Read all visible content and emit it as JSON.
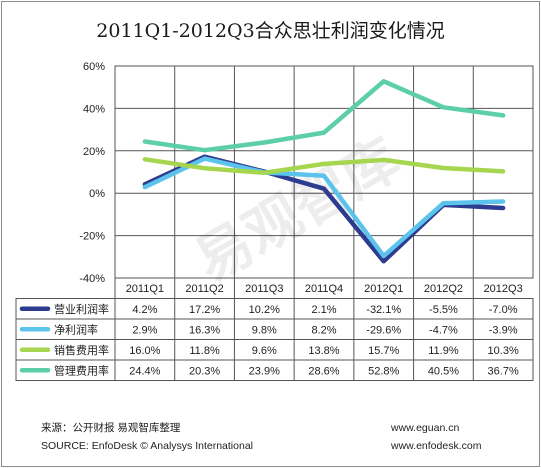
{
  "chart_data": {
    "type": "line",
    "title": "2011Q1-2012Q3合众思壮利润变化情况",
    "categories": [
      "2011Q1",
      "2011Q2",
      "2011Q3",
      "2011Q4",
      "2012Q1",
      "2012Q2",
      "2012Q3"
    ],
    "ylim": [
      -40,
      60
    ],
    "yticks": [
      "60%",
      "40%",
      "20%",
      "0%",
      "-20%",
      "-40%"
    ],
    "yticks_values": [
      60,
      40,
      20,
      0,
      -20,
      -40
    ],
    "grid": true,
    "legend": "data-table",
    "series": [
      {
        "name": "营业利润率",
        "color": "#2e3c8f",
        "values": [
          4.2,
          17.2,
          10.2,
          2.1,
          -32.1,
          -5.5,
          -7.0
        ],
        "labels": [
          "4.2%",
          "17.2%",
          "10.2%",
          "2.1%",
          "-32.1%",
          "-5.5%",
          "-7.0%"
        ]
      },
      {
        "name": "净利润率",
        "color": "#5cc4ec",
        "values": [
          2.9,
          16.3,
          9.8,
          8.2,
          -29.6,
          -4.7,
          -3.9
        ],
        "labels": [
          "2.9%",
          "16.3%",
          "9.8%",
          "8.2%",
          "-29.6%",
          "-4.7%",
          "-3.9%"
        ]
      },
      {
        "name": "销售费用率",
        "color": "#a6d64f",
        "values": [
          16.0,
          11.8,
          9.6,
          13.8,
          15.7,
          11.9,
          10.3
        ],
        "labels": [
          "16.0%",
          "11.8%",
          "9.6%",
          "13.8%",
          "15.7%",
          "11.9%",
          "10.3%"
        ]
      },
      {
        "name": "管理费用率",
        "color": "#5ccfa8",
        "values": [
          24.4,
          20.3,
          23.9,
          28.6,
          52.8,
          40.5,
          36.7
        ],
        "labels": [
          "24.4%",
          "20.3%",
          "23.9%",
          "28.6%",
          "52.8%",
          "40.5%",
          "36.7%"
        ]
      }
    ]
  },
  "watermark": "易观智库",
  "footer": {
    "source_cn": "来源：公开财报 易观智库整理",
    "source_en": "SOURCE: EnfoDesk © Analysys International",
    "url1": "www.eguan.cn",
    "url2": "www.enfodesk.com"
  }
}
